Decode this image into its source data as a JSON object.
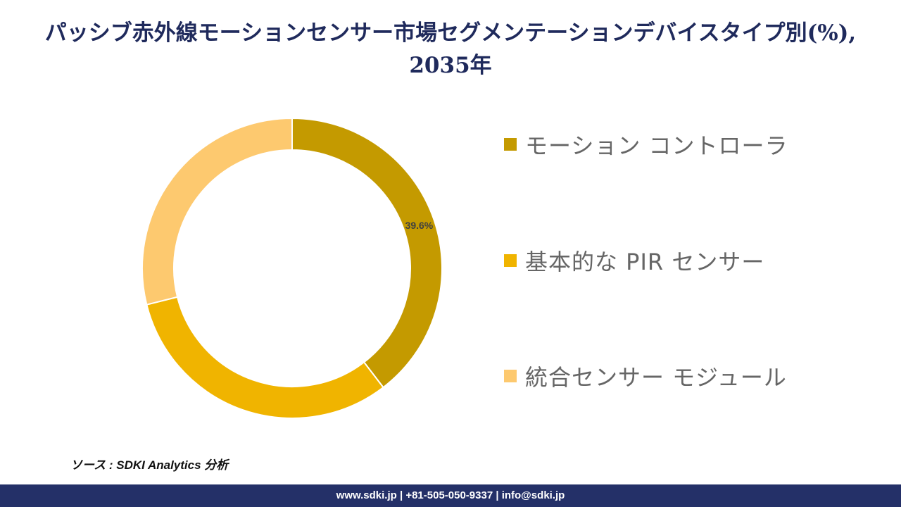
{
  "title": "パッシブ赤外線モーションセンサー市場セグメンテーションデバイスタイプ別(%), 2035年",
  "source": "ソース : SDKI Analytics 分析",
  "footer": "www.sdki.jp | +81-505-050-9337 | info@sdki.jp",
  "chart_data": {
    "type": "pie",
    "donut": true,
    "title": "パッシブ赤外線モーションセンサー市場セグメンテーションデバイスタイプ別(%), 2035年",
    "legend_position": "right",
    "categories": [
      "モーション コントローラ",
      "基本的な PIR センサー",
      "統合センサー モジュール"
    ],
    "values": [
      39.6,
      31.5,
      28.9
    ],
    "colors": [
      "#c49a00",
      "#f0b400",
      "#fdc96f"
    ],
    "data_labels": [
      "39.6%",
      "",
      ""
    ]
  }
}
